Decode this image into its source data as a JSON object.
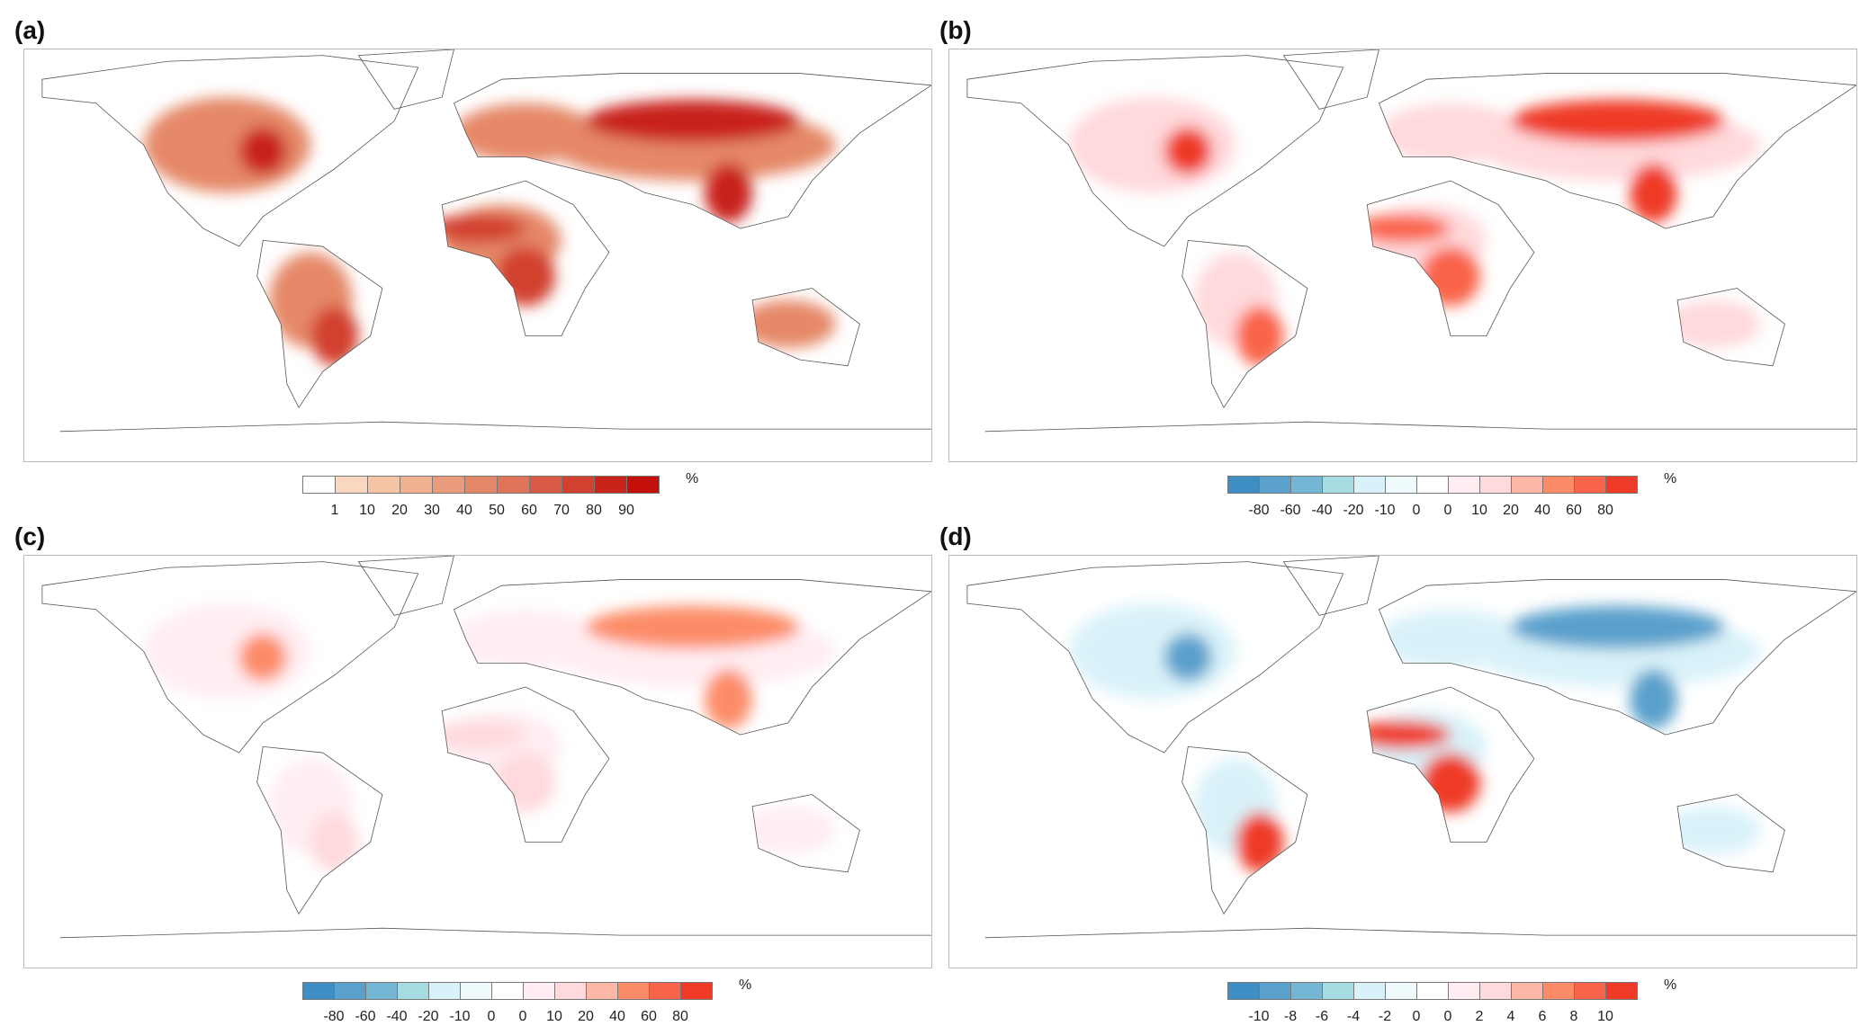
{
  "panels": [
    {
      "label": "(a)",
      "unit": "%",
      "legend": {
        "ticks": [
          "1",
          "10",
          "20",
          "30",
          "40",
          "50",
          "60",
          "70",
          "80",
          "90"
        ],
        "colors": [
          "#ffffff",
          "#f9d7c0",
          "#f4c4a4",
          "#efb190",
          "#e99b7c",
          "#e58868",
          "#df7458",
          "#d95a44",
          "#d2402f",
          "#c9241a",
          "#c40f0a"
        ]
      },
      "hotspots": [
        {
          "c": "#e58868"
        },
        {
          "c": "#c9241a"
        },
        {
          "c": "#d2402f"
        }
      ]
    },
    {
      "label": "(b)",
      "unit": "%",
      "legend": {
        "ticks": [
          "-80",
          "-60",
          "-40",
          "-20",
          "-10",
          "0",
          "0",
          "10",
          "20",
          "40",
          "60",
          "80"
        ],
        "colors": [
          "#3e8ec4",
          "#5aa0cc",
          "#74b6d4",
          "#a7dbe2",
          "#d9f2f9",
          "#effafd",
          "#ffffff",
          "#ffedf2",
          "#ffd9dc",
          "#fcb7a6",
          "#fc8c68",
          "#f9634a",
          "#ef3a28"
        ]
      },
      "hotspots": [
        {
          "c": "#ffd9dc"
        },
        {
          "c": "#ef3a28"
        },
        {
          "c": "#f9634a"
        }
      ]
    },
    {
      "label": "(c)",
      "unit": "%",
      "legend": {
        "ticks": [
          "-80",
          "-60",
          "-40",
          "-20",
          "-10",
          "0",
          "0",
          "10",
          "20",
          "40",
          "60",
          "80"
        ],
        "colors": [
          "#3e8ec4",
          "#5aa0cc",
          "#74b6d4",
          "#a7dbe2",
          "#d9f2f9",
          "#effafd",
          "#ffffff",
          "#ffedf2",
          "#ffd9dc",
          "#fcb7a6",
          "#fc8c68",
          "#f9634a",
          "#ef3a28"
        ]
      },
      "hotspots": [
        {
          "c": "#ffedf2"
        },
        {
          "c": "#fc8c68"
        },
        {
          "c": "#ffd9dc"
        }
      ]
    },
    {
      "label": "(d)",
      "unit": "%",
      "legend": {
        "ticks": [
          "-10",
          "-8",
          "-6",
          "-4",
          "-2",
          "0",
          "0",
          "2",
          "4",
          "6",
          "8",
          "10"
        ],
        "colors": [
          "#3e8ec4",
          "#5aa0cc",
          "#74b6d4",
          "#a7dbe2",
          "#d9f2f9",
          "#effafd",
          "#ffffff",
          "#ffedf2",
          "#ffd9dc",
          "#fcb7a6",
          "#fc8c68",
          "#f9634a",
          "#ef3a28"
        ]
      },
      "hotspots": [
        {
          "c": "#d9f2f9"
        },
        {
          "c": "#5aa0cc"
        },
        {
          "c": "#ef3a28"
        }
      ]
    }
  ]
}
